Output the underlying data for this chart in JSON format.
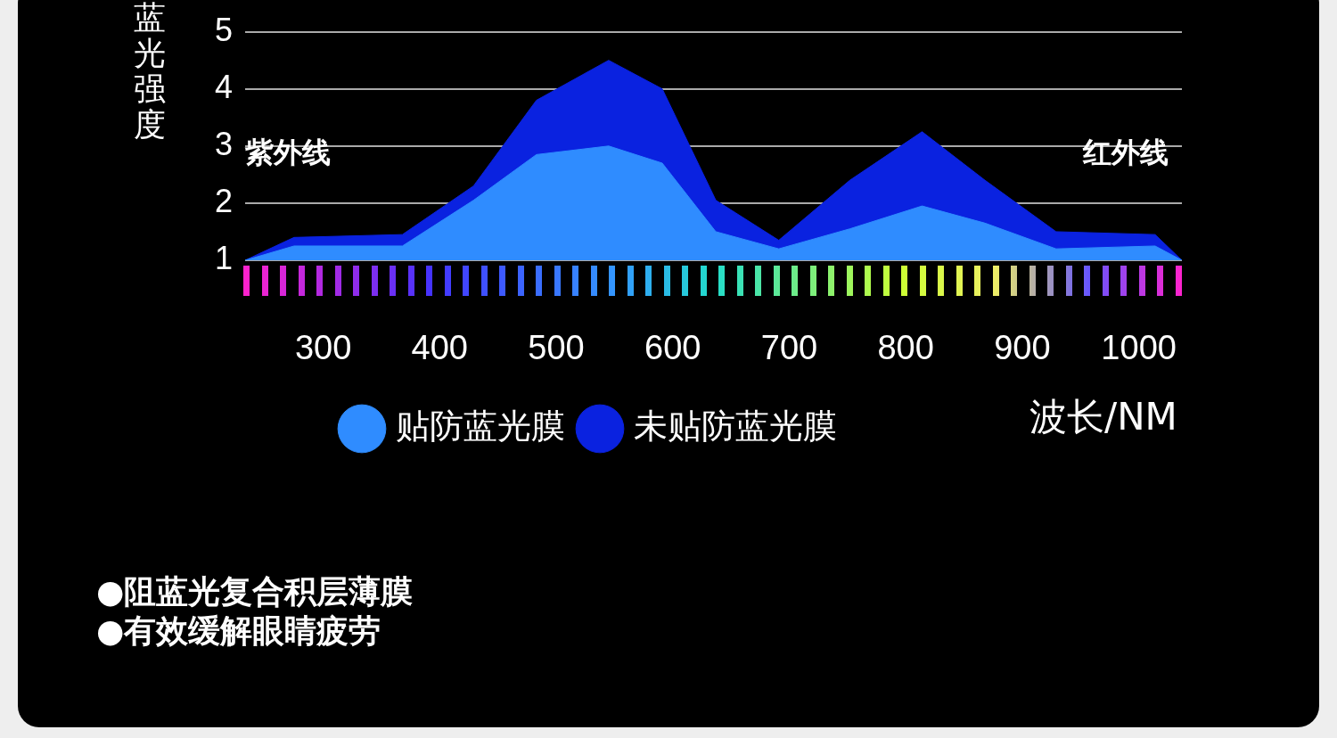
{
  "chart_data": {
    "type": "area",
    "ylabel": "蓝光强度",
    "xlabel": "波长/NM",
    "xlim": [
      233,
      1037
    ],
    "xticks": [
      300,
      400,
      500,
      600,
      700,
      800,
      900,
      1000
    ],
    "ylim": [
      1,
      5
    ],
    "yticks": [
      1,
      2,
      3,
      4,
      5
    ],
    "grid": "y",
    "legend": "bottom",
    "marker": "none",
    "series": [
      {
        "name": "贴防蓝光膜",
        "color": "#2f8cff",
        "x": [
          233,
          275,
          368,
          429,
          483,
          545,
          591,
          637,
          691,
          752,
          814,
          868,
          929,
          1014,
          1037
        ],
        "values": [
          1,
          1.25,
          1.25,
          2.05,
          2.85,
          3,
          2.7,
          1.5,
          1.2,
          1.55,
          1.95,
          1.65,
          1.2,
          1.25,
          1
        ]
      },
      {
        "name": "未贴防蓝光膜",
        "color": "#0a22e0",
        "x": [
          233,
          275,
          368,
          429,
          483,
          545,
          591,
          637,
          691,
          752,
          814,
          868,
          929,
          1014,
          1037
        ],
        "values": [
          1,
          1.4,
          1.45,
          2.3,
          3.8,
          4.5,
          4,
          2.05,
          1.35,
          2.4,
          3.25,
          2.4,
          1.5,
          1.45,
          1
        ]
      }
    ],
    "annotations": [
      "紫外线",
      "红外线",
      "●阻蓝光复合积层薄膜",
      "●有效缓解眼睛疲劳"
    ]
  }
}
